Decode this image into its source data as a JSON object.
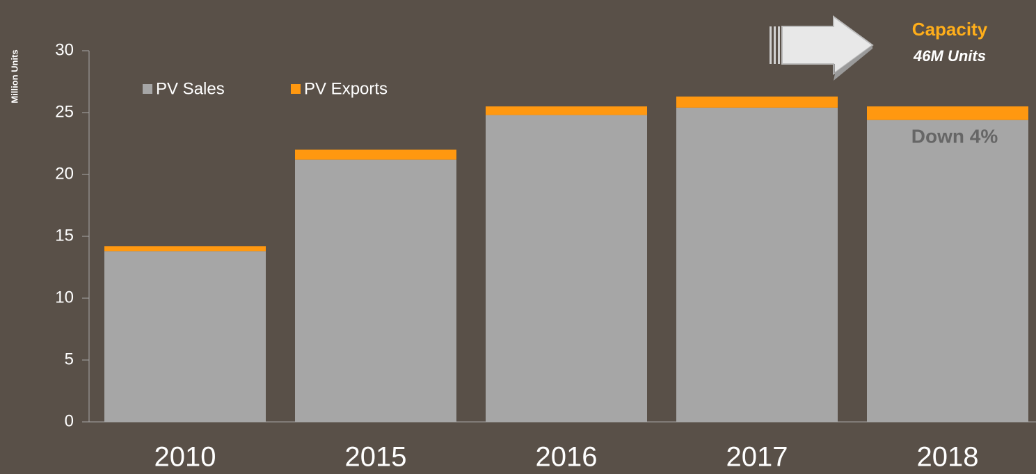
{
  "chart_data": {
    "type": "stacked_bar",
    "ylabel": "Million Units",
    "categories": [
      "2010",
      "2015",
      "2016",
      "2017",
      "2018"
    ],
    "series": [
      {
        "name": "PV Sales",
        "color": "#a6a6a6",
        "values": [
          13.8,
          21.2,
          24.8,
          25.4,
          24.4
        ]
      },
      {
        "name": "PV Exports",
        "color": "#ff9810",
        "values": [
          0.4,
          0.8,
          0.7,
          0.9,
          1.1
        ]
      }
    ],
    "ylim": [
      0,
      30
    ],
    "yticks": [
      0,
      5,
      10,
      15,
      20,
      25,
      30
    ],
    "annotations": [
      "Capacity",
      "46M Units",
      "Down 4%"
    ]
  }
}
